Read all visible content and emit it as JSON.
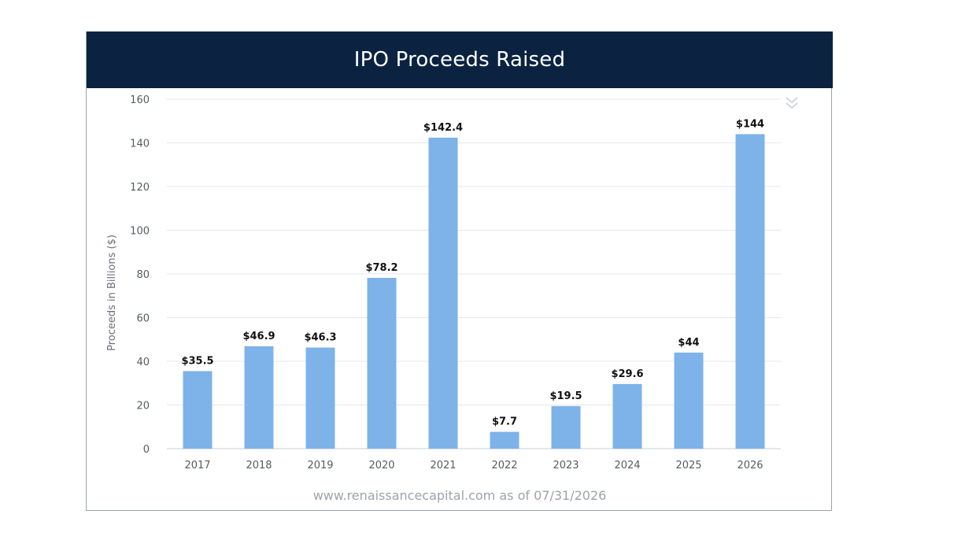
{
  "header": {
    "title": "IPO Proceeds Raised"
  },
  "footer": {
    "credit": "www.renaissancecapital.com as of 07/31/2026"
  },
  "icons": {
    "menu": "double-chevron-down-icon"
  },
  "colors": {
    "header_bg": "#0b2340",
    "bar": "#7db3e8",
    "grid": "#e4e7eb"
  },
  "chart_data": {
    "type": "bar",
    "title": "IPO Proceeds Raised",
    "xlabel": "",
    "ylabel": "Proceeds in Billions ($)",
    "ylim": [
      0,
      160
    ],
    "yticks": [
      0,
      20,
      40,
      60,
      80,
      100,
      120,
      140,
      160
    ],
    "grid": true,
    "categories": [
      "2017",
      "2018",
      "2019",
      "2020",
      "2021",
      "2022",
      "2023",
      "2024",
      "2025",
      "2026"
    ],
    "values": [
      35.5,
      46.9,
      46.3,
      78.2,
      142.4,
      7.7,
      19.5,
      29.6,
      44,
      144
    ],
    "data_labels": [
      "$35.5",
      "$46.9",
      "$46.3",
      "$78.2",
      "$142.4",
      "$7.7",
      "$19.5",
      "$29.6",
      "$44",
      "$144"
    ]
  }
}
